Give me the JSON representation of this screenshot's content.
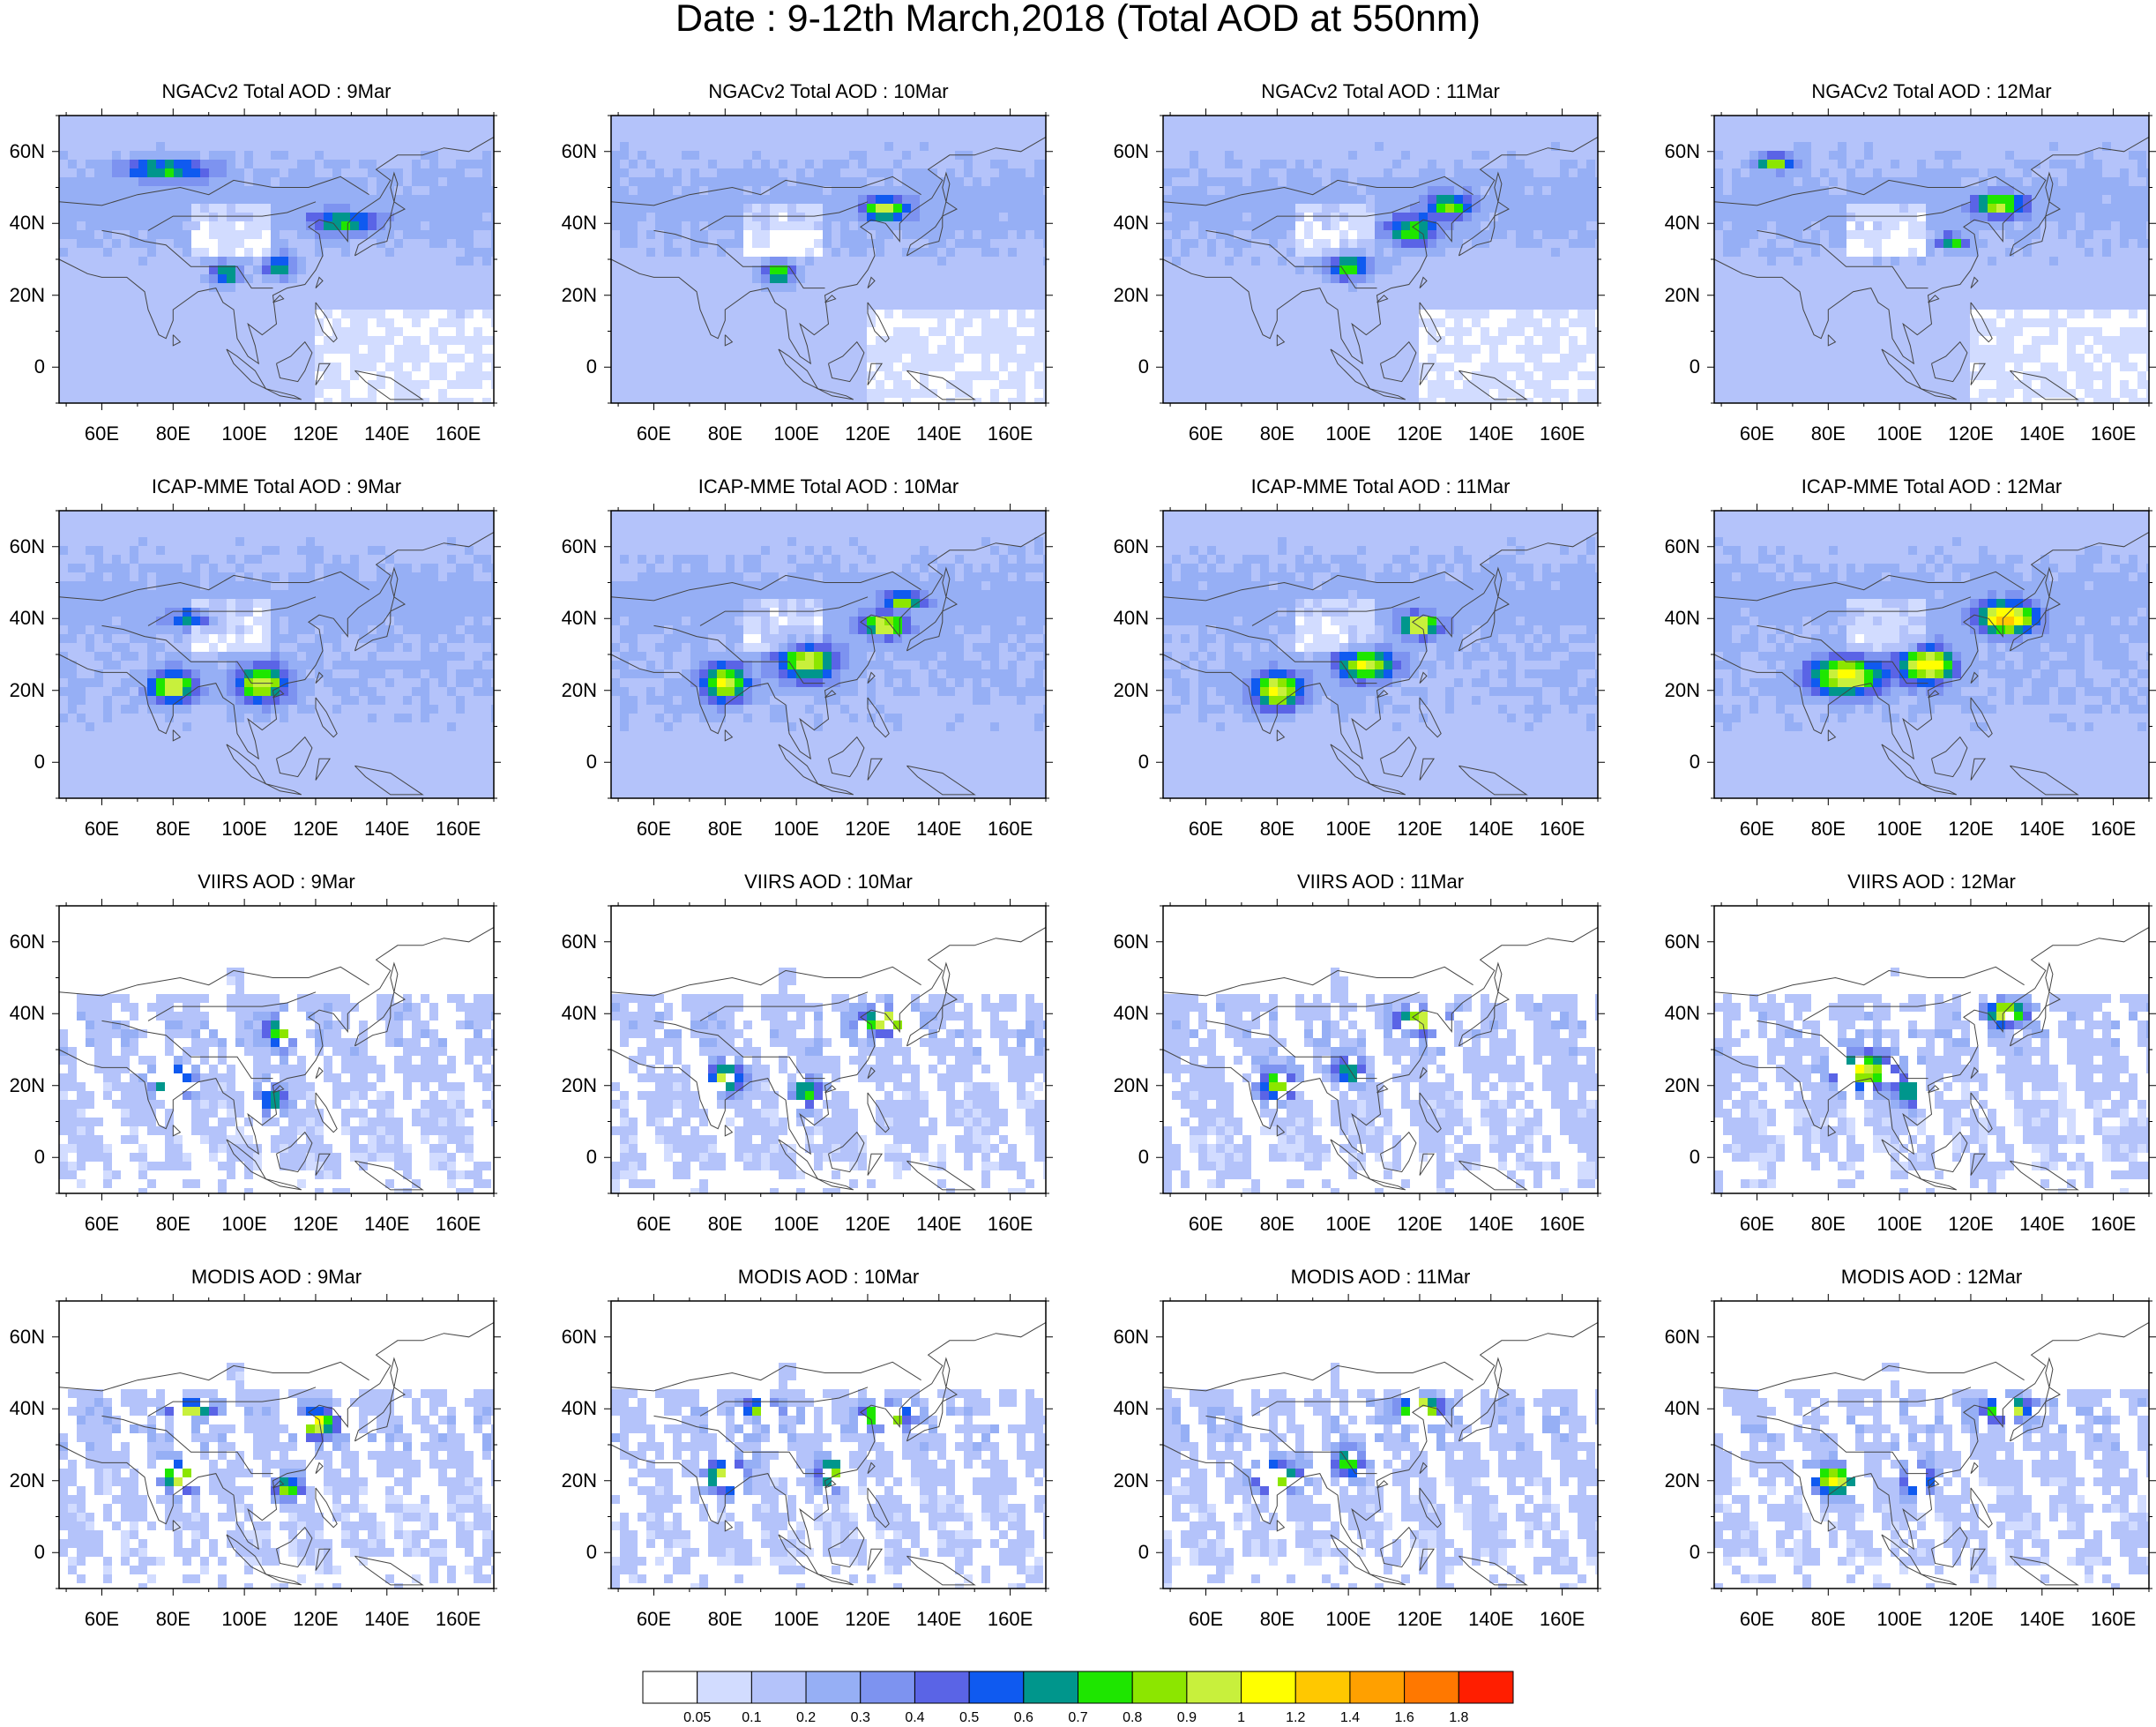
{
  "title": "Date : 9-12th March,2018 (Total AOD at 550nm)",
  "chart_data": {
    "type": "heatmap",
    "title": "Date : 9-12th March,2018 (Total AOD at 550nm)",
    "variable": "Total AOD at 550nm",
    "grid": {
      "rows": 4,
      "columns": 4
    },
    "rows": [
      {
        "product": "NGACv2 Total AOD"
      },
      {
        "product": "ICAP-MME Total AOD"
      },
      {
        "product": "VIIRS AOD"
      },
      {
        "product": "MODIS AOD"
      }
    ],
    "dates": [
      "9Mar",
      "10Mar",
      "11Mar",
      "12Mar"
    ],
    "panel_titles": [
      [
        "NGACv2 Total AOD : 9Mar",
        "NGACv2 Total AOD : 10Mar",
        "NGACv2 Total AOD : 11Mar",
        "NGACv2 Total AOD : 12Mar"
      ],
      [
        "ICAP-MME Total AOD : 9Mar",
        "ICAP-MME Total AOD : 10Mar",
        "ICAP-MME Total AOD : 11Mar",
        "ICAP-MME Total AOD : 12Mar"
      ],
      [
        "VIIRS AOD : 9Mar",
        "VIIRS AOD : 10Mar",
        "VIIRS AOD : 11Mar",
        "VIIRS AOD : 12Mar"
      ],
      [
        "MODIS AOD : 9Mar",
        "MODIS AOD : 10Mar",
        "MODIS AOD : 11Mar",
        "MODIS AOD : 12Mar"
      ]
    ],
    "x_ticks": [
      "60E",
      "80E",
      "100E",
      "120E",
      "140E",
      "160E"
    ],
    "y_ticks": [
      "60N",
      "40N",
      "20N",
      "0"
    ],
    "lon_range": [
      48,
      170
    ],
    "lat_range": [
      -10,
      70
    ],
    "colorbar": {
      "levels": [
        "0.05",
        "0.1",
        "0.2",
        "0.3",
        "0.4",
        "0.5",
        "0.6",
        "0.7",
        "0.8",
        "0.9",
        "1",
        "1.2",
        "1.4",
        "1.6",
        "1.8"
      ],
      "colors": [
        "#ffffff",
        "#d2dcff",
        "#b4c3fa",
        "#96aff5",
        "#7d93f0",
        "#5a64e6",
        "#0f5af0",
        "#00968c",
        "#1ee600",
        "#8ce600",
        "#c8f03c",
        "#ffff00",
        "#ffc800",
        "#ffa000",
        "#ff7800",
        "#ff1e00"
      ]
    }
  }
}
